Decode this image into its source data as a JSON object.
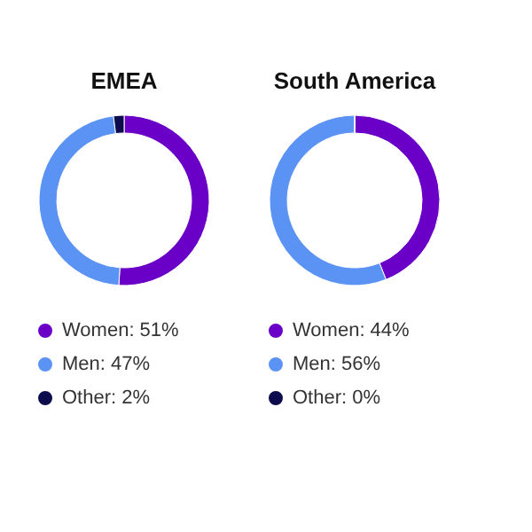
{
  "chart_data": [
    {
      "type": "donut",
      "title": "EMEA",
      "categories": [
        "Women: 51%",
        "Men: 47%",
        "Other: 2%"
      ],
      "values": [
        51,
        47,
        2
      ],
      "colors": [
        "#6a00c8",
        "#5b93f5",
        "#0b0b4d"
      ],
      "legend": "bottom"
    },
    {
      "type": "donut",
      "title": "South America",
      "categories": [
        "Women: 44%",
        "Men: 56%",
        "Other: 0%"
      ],
      "values": [
        44,
        56,
        0
      ],
      "colors": [
        "#6a00c8",
        "#5b93f5",
        "#0b0b4d"
      ],
      "legend": "bottom"
    }
  ]
}
